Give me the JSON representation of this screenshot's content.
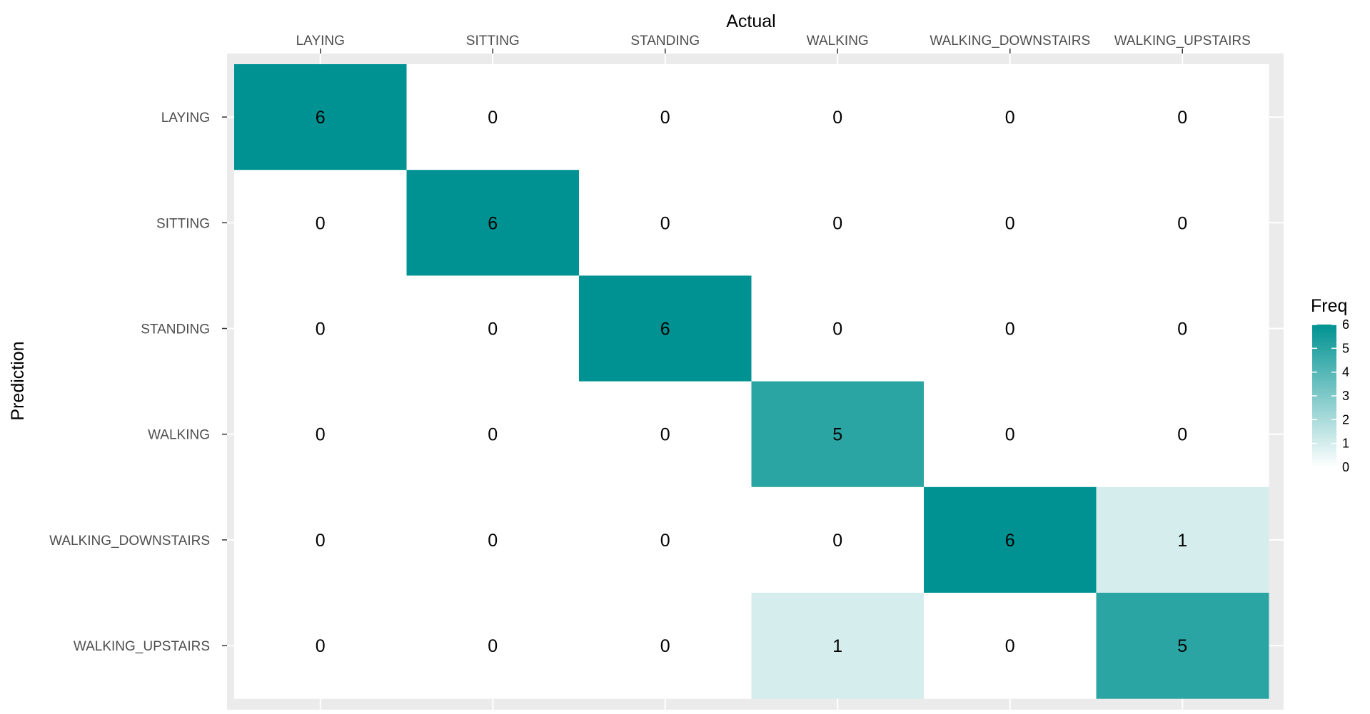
{
  "chart_data": {
    "type": "heatmap",
    "xlabel": "Actual",
    "ylabel": "Prediction",
    "x_categories": [
      "LAYING",
      "SITTING",
      "STANDING",
      "WALKING",
      "WALKING_DOWNSTAIRS",
      "WALKING_UPSTAIRS"
    ],
    "y_categories": [
      "LAYING",
      "SITTING",
      "STANDING",
      "WALKING",
      "WALKING_DOWNSTAIRS",
      "WALKING_UPSTAIRS"
    ],
    "values": [
      [
        6,
        0,
        0,
        0,
        0,
        0
      ],
      [
        0,
        6,
        0,
        0,
        0,
        0
      ],
      [
        0,
        0,
        6,
        0,
        0,
        0
      ],
      [
        0,
        0,
        0,
        5,
        0,
        0
      ],
      [
        0,
        0,
        0,
        0,
        6,
        1
      ],
      [
        0,
        0,
        0,
        1,
        0,
        5
      ]
    ],
    "legend": {
      "title": "Freq",
      "ticks": [
        "0",
        "1",
        "2",
        "3",
        "4",
        "5",
        "6"
      ],
      "range": [
        0,
        6
      ],
      "placement": "right"
    },
    "colors": {
      "low": "#ffffff",
      "high": "#009292",
      "panel_background": "#ebebeb",
      "grid": "#ffffff"
    },
    "x_axis_position": "top",
    "grid": true
  }
}
